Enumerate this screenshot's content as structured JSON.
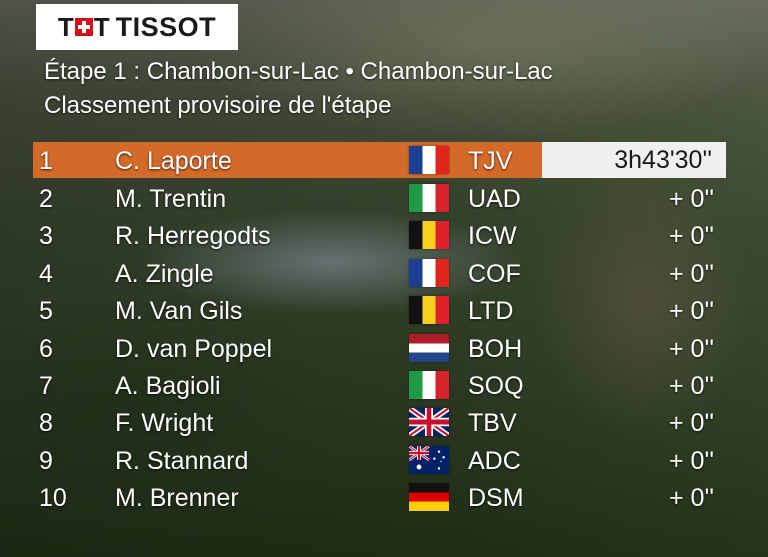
{
  "brand": {
    "name": "TISSOT"
  },
  "stage": {
    "title": "Étape 1 : Chambon-sur-Lac • Chambon-sur-Lac",
    "subtitle": "Classement provisoire de l'étape"
  },
  "colors": {
    "leader_bar": "#d36a2a",
    "time_box": "#f0f0f0",
    "text": "#ffffff"
  },
  "standings": [
    {
      "pos": "1",
      "name": "C. Laporte",
      "flag": "france-flag",
      "team": "TJV",
      "time": "3h43'30''"
    },
    {
      "pos": "2",
      "name": "M. Trentin",
      "flag": "italy-flag",
      "team": "UAD",
      "time": "+ 0''"
    },
    {
      "pos": "3",
      "name": "R. Herregodts",
      "flag": "belgium-flag",
      "team": "ICW",
      "time": "+ 0''"
    },
    {
      "pos": "4",
      "name": "A. Zingle",
      "flag": "france-flag",
      "team": "COF",
      "time": "+ 0''"
    },
    {
      "pos": "5",
      "name": "M. Van Gils",
      "flag": "belgium-flag",
      "team": "LTD",
      "time": "+ 0''"
    },
    {
      "pos": "6",
      "name": "D. van Poppel",
      "flag": "netherlands-flag",
      "team": "BOH",
      "time": "+ 0''"
    },
    {
      "pos": "7",
      "name": "A. Bagioli",
      "flag": "italy-flag",
      "team": "SOQ",
      "time": "+ 0''"
    },
    {
      "pos": "8",
      "name": "F. Wright",
      "flag": "uk-flag",
      "team": "TBV",
      "time": "+ 0''"
    },
    {
      "pos": "9",
      "name": "R. Stannard",
      "flag": "australia-flag",
      "team": "ADC",
      "time": "+ 0''"
    },
    {
      "pos": "10",
      "name": "M. Brenner",
      "flag": "germany-flag",
      "team": "DSM",
      "time": "+ 0''"
    }
  ]
}
